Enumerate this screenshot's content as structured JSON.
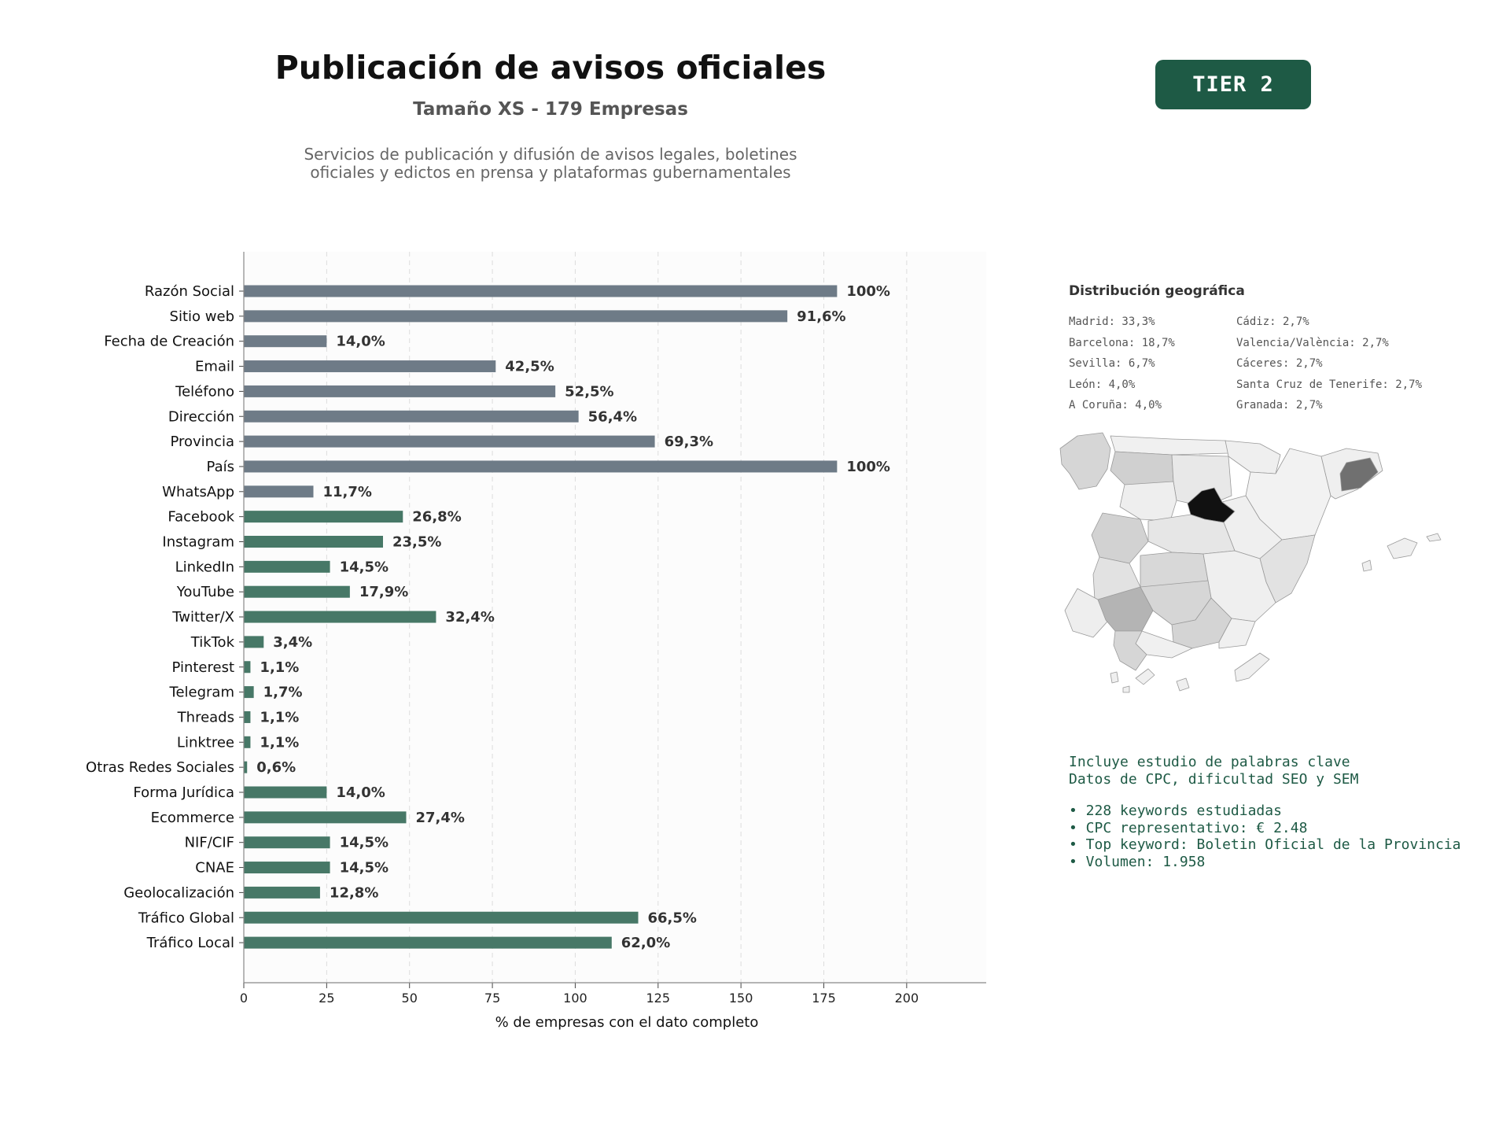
{
  "header": {
    "title": "Publicación de avisos oficiales",
    "subtitle": "Tamaño XS - 179 Empresas",
    "description_line1": "Servicios de publicación y difusión de avisos legales, boletines",
    "description_line2": "oficiales y edictos en prensa y plataformas gubernamentales"
  },
  "tier_badge": {
    "label": "TIER 2",
    "color": "#1e5a45"
  },
  "colors": {
    "contact_bar": "#6e7b87",
    "social_bar": "#477867",
    "plot_bg": "#fcfcfc",
    "accent": "#1e5a45"
  },
  "chart_data": {
    "type": "bar",
    "orientation": "horizontal",
    "categories": [
      "Razón Social",
      "Sitio web",
      "Fecha de Creación",
      "Email",
      "Teléfono",
      "Dirección",
      "Provincia",
      "País",
      "WhatsApp",
      "Facebook",
      "Instagram",
      "LinkedIn",
      "YouTube",
      "Twitter/X",
      "TikTok",
      "Pinterest",
      "Telegram",
      "Threads",
      "Linktree",
      "Otras Redes Sociales",
      "Forma Jurídica",
      "Ecommerce",
      "NIF/CIF",
      "CNAE",
      "Geolocalización",
      "Tráfico Global",
      "Tráfico Local"
    ],
    "values": [
      179,
      164,
      25,
      76,
      94,
      101,
      124,
      179,
      21,
      48,
      42,
      26,
      32,
      58,
      6,
      2,
      3,
      2,
      2,
      1,
      25,
      49,
      26,
      26,
      23,
      119,
      111
    ],
    "labels": [
      "100%",
      "91,6%",
      "14,0%",
      "42,5%",
      "52,5%",
      "56,4%",
      "69,3%",
      "100%",
      "11,7%",
      "26,8%",
      "23,5%",
      "14,5%",
      "17,9%",
      "32,4%",
      "3,4%",
      "1,1%",
      "1,7%",
      "1,1%",
      "1,1%",
      "0,6%",
      "14,0%",
      "27,4%",
      "14,5%",
      "14,5%",
      "12,8%",
      "66,5%",
      "62,0%"
    ],
    "groups": [
      "contact",
      "contact",
      "contact",
      "contact",
      "contact",
      "contact",
      "contact",
      "contact",
      "contact",
      "social",
      "social",
      "social",
      "social",
      "social",
      "social",
      "social",
      "social",
      "social",
      "social",
      "social",
      "social",
      "social",
      "social",
      "social",
      "social",
      "social",
      "social"
    ],
    "xlabel": "% de empresas con el dato completo",
    "xlim": [
      0,
      224
    ],
    "xticks": [
      0,
      25,
      50,
      75,
      100,
      125,
      150,
      175,
      200
    ],
    "grid": "vertical-dashed"
  },
  "geo": {
    "title": "Distribución geográfica",
    "col1": [
      "Madrid: 33,3%",
      "Barcelona: 18,7%",
      "Sevilla: 6,7%",
      "León: 4,0%",
      "A Coruña: 4,0%"
    ],
    "col2": [
      "Cádiz: 2,7%",
      "Valencia/València: 2,7%",
      "Cáceres: 2,7%",
      "Santa Cruz de Tenerife: 2,7%",
      "Granada: 2,7%"
    ]
  },
  "keywords": {
    "line1": "Incluye estudio de palabras clave",
    "line2": "Datos de CPC, dificultad SEO y SEM",
    "bullets": [
      "• 228 keywords estudiadas",
      "• CPC representativo: € 2.48",
      "• Top keyword: Boletin Oficial de la Provincia",
      "• Volumen: 1.958"
    ]
  }
}
